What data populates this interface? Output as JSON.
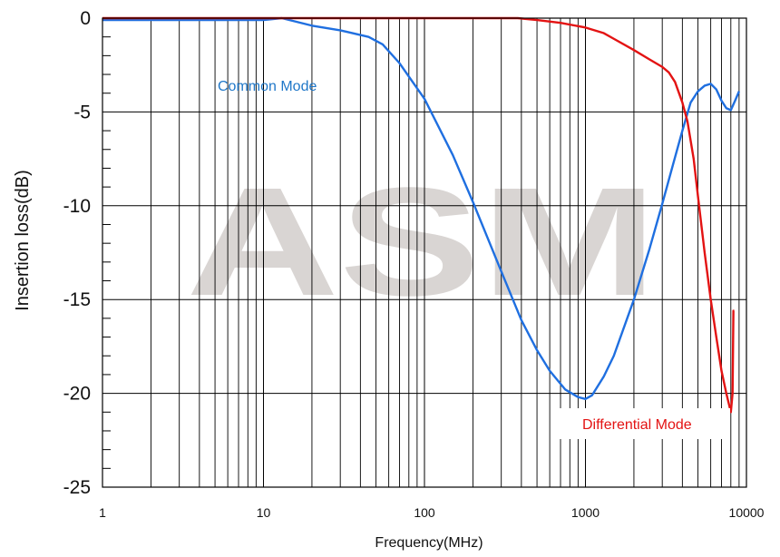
{
  "chart_data": {
    "type": "line",
    "xscale": "log",
    "xlim": [
      1,
      10000
    ],
    "ylim": [
      -25,
      0
    ],
    "grid": true,
    "xlabel": "Frequency(MHz)",
    "ylabel": "Insertion loss(dB)",
    "x_ticks": [
      "1",
      "10",
      "100",
      "1000",
      "10000"
    ],
    "y_ticks": [
      "0",
      "-5",
      "-10",
      "-15",
      "-20",
      "-25"
    ],
    "watermark": "ASM",
    "series": [
      {
        "name": "Common Mode",
        "color": "#1f6fe0",
        "label_color": "#1f77c8",
        "points": [
          [
            1,
            -0.1
          ],
          [
            5,
            -0.1
          ],
          [
            10,
            -0.1
          ],
          [
            13,
            0
          ],
          [
            20,
            -0.4
          ],
          [
            30,
            -0.65
          ],
          [
            45,
            -1.0
          ],
          [
            55,
            -1.4
          ],
          [
            70,
            -2.4
          ],
          [
            100,
            -4.3
          ],
          [
            150,
            -7.3
          ],
          [
            200,
            -9.8
          ],
          [
            300,
            -13.5
          ],
          [
            400,
            -16.1
          ],
          [
            500,
            -17.7
          ],
          [
            600,
            -18.8
          ],
          [
            750,
            -19.8
          ],
          [
            900,
            -20.2
          ],
          [
            1000,
            -20.3
          ],
          [
            1100,
            -20.1
          ],
          [
            1300,
            -19.1
          ],
          [
            1500,
            -18.0
          ],
          [
            2000,
            -15.0
          ],
          [
            2500,
            -12.3
          ],
          [
            3000,
            -9.9
          ],
          [
            3500,
            -7.8
          ],
          [
            4000,
            -6.0
          ],
          [
            4500,
            -4.5
          ],
          [
            5000,
            -3.9
          ],
          [
            5500,
            -3.6
          ],
          [
            6000,
            -3.5
          ],
          [
            6500,
            -3.8
          ],
          [
            7000,
            -4.4
          ],
          [
            7500,
            -4.8
          ],
          [
            8000,
            -4.9
          ],
          [
            8500,
            -4.4
          ],
          [
            9000,
            -3.9
          ]
        ]
      },
      {
        "name": "Differential Mode",
        "color": "#e31313",
        "label_color": "#e31313",
        "points": [
          [
            1,
            0
          ],
          [
            10,
            0
          ],
          [
            100,
            0
          ],
          [
            380,
            0
          ],
          [
            500,
            -0.1
          ],
          [
            700,
            -0.25
          ],
          [
            1000,
            -0.5
          ],
          [
            1300,
            -0.8
          ],
          [
            1500,
            -1.1
          ],
          [
            2000,
            -1.7
          ],
          [
            2500,
            -2.2
          ],
          [
            3000,
            -2.6
          ],
          [
            3300,
            -2.9
          ],
          [
            3600,
            -3.4
          ],
          [
            4000,
            -4.5
          ],
          [
            4300,
            -5.5
          ],
          [
            4700,
            -7.5
          ],
          [
            5000,
            -9.5
          ],
          [
            5500,
            -12.5
          ],
          [
            6000,
            -15.0
          ],
          [
            6500,
            -17.0
          ],
          [
            7000,
            -18.8
          ],
          [
            7500,
            -20.0
          ],
          [
            8000,
            -21.0
          ],
          [
            8200,
            -20.0
          ],
          [
            8300,
            -15.6
          ],
          [
            8400,
            -15.6
          ]
        ]
      }
    ]
  }
}
